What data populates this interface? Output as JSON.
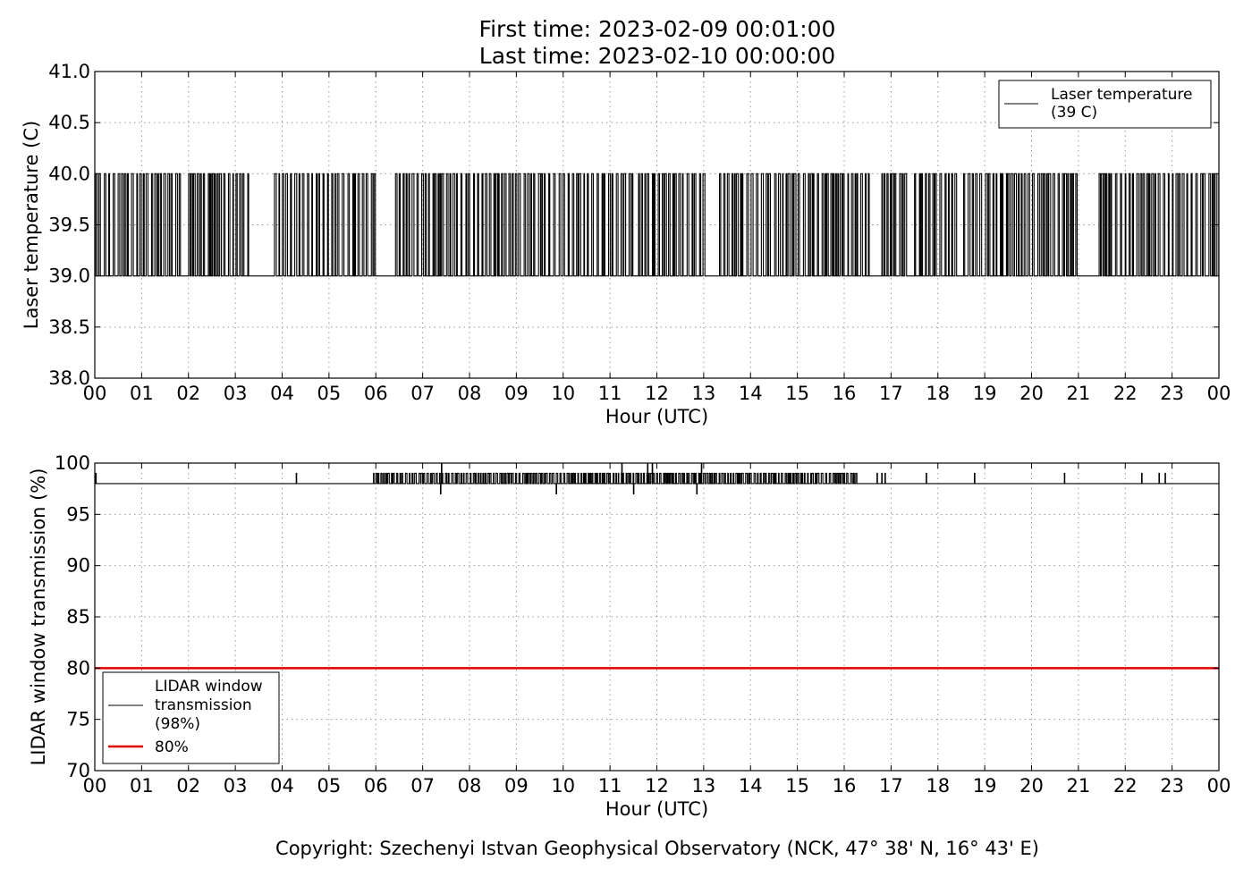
{
  "header": {
    "title_line1": "First time: 2023-02-09 00:01:00",
    "title_line2": "Last time: 2023-02-10 00:00:00"
  },
  "footer": {
    "copyright": "Copyright: Szechenyi Istvan Geophysical Observatory (NCK, 47° 38' N, 16° 43' E)"
  },
  "colors": {
    "series_line": "#000000",
    "threshold_line": "#e00000",
    "grid": "#999999"
  },
  "chart_data": [
    {
      "type": "line",
      "title": "",
      "xlabel": "Hour (UTC)",
      "ylabel": "Laser temperature (C)",
      "xlim": [
        0,
        24
      ],
      "ylim": [
        38.0,
        41.0
      ],
      "x_tick_labels": [
        "00",
        "01",
        "02",
        "03",
        "04",
        "05",
        "06",
        "07",
        "08",
        "09",
        "10",
        "11",
        "12",
        "13",
        "14",
        "15",
        "16",
        "17",
        "18",
        "19",
        "20",
        "21",
        "22",
        "23",
        "00"
      ],
      "y_ticks": [
        "38.0",
        "38.5",
        "39.0",
        "39.5",
        "40.0",
        "40.5",
        "41.0"
      ],
      "grid": true,
      "legend_position": "top-right",
      "series": [
        {
          "name": "Laser temperature (39 C)",
          "legend_lines": [
            "Laser temperature",
            "(39 C)"
          ],
          "baseline": 39.0,
          "high_level": 40.0,
          "x_dense_ranges_hours": [
            [
              0.0,
              1.9
            ],
            [
              2.0,
              3.3
            ],
            [
              3.8,
              6.0
            ],
            [
              6.4,
              11.5
            ],
            [
              11.6,
              13.0
            ],
            [
              13.3,
              14.4
            ],
            [
              14.5,
              16.6
            ],
            [
              16.8,
              17.4
            ],
            [
              17.5,
              18.4
            ],
            [
              18.5,
              19.3
            ],
            [
              19.3,
              21.0
            ],
            [
              21.4,
              24.0
            ]
          ]
        }
      ]
    },
    {
      "type": "line",
      "title": "",
      "xlabel": "Hour (UTC)",
      "ylabel": "LIDAR window transmission (%)",
      "xlim": [
        0,
        24
      ],
      "ylim": [
        70,
        100
      ],
      "x_tick_labels": [
        "00",
        "01",
        "02",
        "03",
        "04",
        "05",
        "06",
        "07",
        "08",
        "09",
        "10",
        "11",
        "12",
        "13",
        "14",
        "15",
        "16",
        "17",
        "18",
        "19",
        "20",
        "21",
        "22",
        "23",
        "00"
      ],
      "y_ticks": [
        "70",
        "75",
        "80",
        "85",
        "90",
        "95",
        "100"
      ],
      "grid": true,
      "legend_position": "bottom-left",
      "series": [
        {
          "name": "LIDAR window transmission (98%)",
          "legend_lines": [
            "LIDAR window",
            "transmission",
            "(98%)"
          ],
          "baseline": 98,
          "spike_level": 99,
          "dense_range_hours": [
            6.0,
            16.3
          ],
          "isolated_spikes_hours": [
            0.02,
            4.3,
            5.95,
            16.7,
            16.8,
            16.87,
            17.75,
            18.78,
            20.7,
            22.35,
            22.72,
            22.85
          ],
          "dips": [
            {
              "x": 7.38,
              "y": 97.0
            },
            {
              "x": 9.85,
              "y": 97.0
            },
            {
              "x": 11.5,
              "y": 97.0
            },
            {
              "x": 12.85,
              "y": 97.0
            }
          ],
          "peaks": [
            {
              "x": 7.4,
              "y": 100.0
            },
            {
              "x": 11.25,
              "y": 100.0
            },
            {
              "x": 11.8,
              "y": 100.0
            },
            {
              "x": 11.9,
              "y": 100.0
            },
            {
              "x": 12.95,
              "y": 100.0
            }
          ]
        },
        {
          "name": "80%",
          "legend_lines": [
            "80%"
          ],
          "constant": 80,
          "color": "#e00000"
        }
      ]
    }
  ]
}
